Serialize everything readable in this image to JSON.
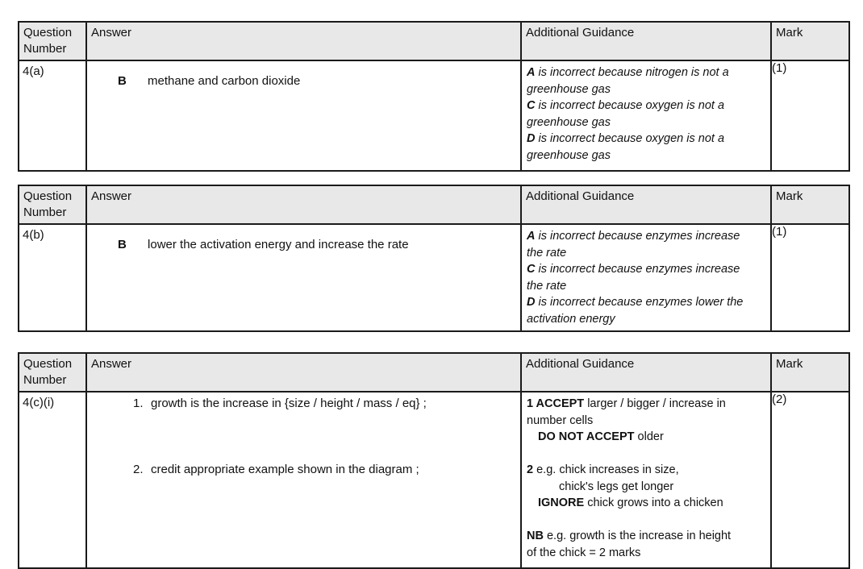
{
  "styles": {
    "header_bg": "#e8e8e8",
    "border_color": "#1a1a1a",
    "text_color": "#111111"
  },
  "column_headers": {
    "question": "Question Number",
    "answer": "Answer",
    "guidance": "Additional Guidance",
    "mark": "Mark"
  },
  "tables": [
    {
      "question_number": "4(a)",
      "answer": {
        "letter": "B",
        "text": "methane and carbon dioxide"
      },
      "guidance": {
        "italic": true,
        "lines": [
          {
            "runs": [
              {
                "t": "A",
                "b": true
              },
              {
                "t": " is incorrect because nitrogen is not a"
              }
            ]
          },
          {
            "runs": [
              {
                "t": "greenhouse gas"
              }
            ]
          },
          {
            "runs": [
              {
                "t": "C",
                "b": true
              },
              {
                "t": " is incorrect because oxygen is not a"
              }
            ]
          },
          {
            "runs": [
              {
                "t": "greenhouse gas"
              }
            ]
          },
          {
            "runs": [
              {
                "t": "D",
                "b": true
              },
              {
                "t": " is incorrect because oxygen is not a"
              }
            ]
          },
          {
            "runs": [
              {
                "t": "greenhouse gas"
              }
            ]
          }
        ]
      },
      "mark": "(1)"
    },
    {
      "question_number": "4(b)",
      "answer": {
        "letter": "B",
        "text": "lower the activation energy and increase the rate"
      },
      "guidance": {
        "italic": true,
        "lines": [
          {
            "runs": [
              {
                "t": "A",
                "b": true
              },
              {
                "t": " is incorrect because enzymes increase"
              }
            ]
          },
          {
            "runs": [
              {
                "t": "the rate"
              }
            ]
          },
          {
            "runs": [
              {
                "t": "C",
                "b": true
              },
              {
                "t": " is incorrect because enzymes increase"
              }
            ]
          },
          {
            "runs": [
              {
                "t": "the rate"
              }
            ]
          },
          {
            "runs": [
              {
                "t": "D",
                "b": true
              },
              {
                "t": " is incorrect because enzymes lower the"
              }
            ]
          },
          {
            "runs": [
              {
                "t": "activation energy"
              }
            ]
          }
        ]
      },
      "mark": "(1)"
    },
    {
      "question_number": "4(c)(i)",
      "answer_items": [
        {
          "num": "1.",
          "text": "growth is the increase in {size / height / mass / eq} ;"
        },
        {
          "num": "2.",
          "text": "credit appropriate example shown in the diagram ;"
        }
      ],
      "guidance": {
        "italic": false,
        "lines": [
          {
            "runs": [
              {
                "t": "1 ACCEPT",
                "b": true
              },
              {
                "t": " larger / bigger / increase in"
              }
            ]
          },
          {
            "runs": [
              {
                "t": "number cells"
              }
            ]
          },
          {
            "indent": 1,
            "runs": [
              {
                "t": "DO NOT ACCEPT",
                "b": true
              },
              {
                "t": " older"
              }
            ]
          },
          {
            "blank": true
          },
          {
            "runs": [
              {
                "t": "2",
                "b": true
              },
              {
                "t": " e.g. chick increases in size,"
              }
            ]
          },
          {
            "indent": 2,
            "runs": [
              {
                "t": "chick's legs get longer"
              }
            ]
          },
          {
            "indent": 1,
            "runs": [
              {
                "t": "IGNORE",
                "b": true
              },
              {
                "t": " chick grows into a chicken"
              }
            ]
          },
          {
            "blank": true
          },
          {
            "runs": [
              {
                "t": "NB",
                "b": true
              },
              {
                "t": " e.g. growth is the increase in height"
              }
            ]
          },
          {
            "runs": [
              {
                "t": "of the chick = 2 marks"
              }
            ]
          }
        ]
      },
      "mark": "(2)"
    }
  ]
}
